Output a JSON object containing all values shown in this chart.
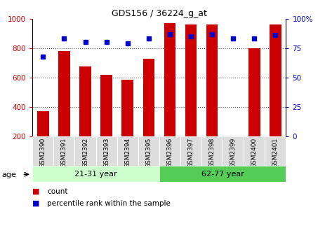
{
  "title": "GDS156 / 36224_g_at",
  "samples": [
    "GSM2390",
    "GSM2391",
    "GSM2392",
    "GSM2393",
    "GSM2394",
    "GSM2395",
    "GSM2396",
    "GSM2397",
    "GSM2398",
    "GSM2399",
    "GSM2400",
    "GSM2401"
  ],
  "bar_values": [
    370,
    780,
    675,
    620,
    583,
    730,
    970,
    960,
    960,
    200,
    800,
    960
  ],
  "percentile_values": [
    68,
    83,
    80,
    80,
    79,
    83,
    87,
    85,
    87,
    83,
    83,
    86
  ],
  "bar_color": "#cc0000",
  "percentile_color": "#0000cc",
  "ylim_left": [
    200,
    1000
  ],
  "ylim_right": [
    0,
    100
  ],
  "yticks_left": [
    200,
    400,
    600,
    800,
    1000
  ],
  "yticks_right": [
    0,
    25,
    50,
    75,
    100
  ],
  "ytick_labels_right": [
    "0",
    "25",
    "50",
    "75",
    "100%"
  ],
  "groups": [
    {
      "label": "21-31 year",
      "start": 0,
      "end": 6,
      "color": "#ccffcc"
    },
    {
      "label": "62-77 year",
      "start": 6,
      "end": 12,
      "color": "#55cc55"
    }
  ],
  "age_label": "age",
  "legend_items": [
    {
      "color": "#cc0000",
      "label": "count"
    },
    {
      "color": "#0000cc",
      "label": "percentile rank within the sample"
    }
  ],
  "grid_color": "#555555",
  "bar_width": 0.55,
  "tick_label_color_left": "#cc0000",
  "tick_label_color_right": "#0000cc",
  "xlim": [
    -0.5,
    11.5
  ],
  "xtick_bg_color": "#dddddd"
}
